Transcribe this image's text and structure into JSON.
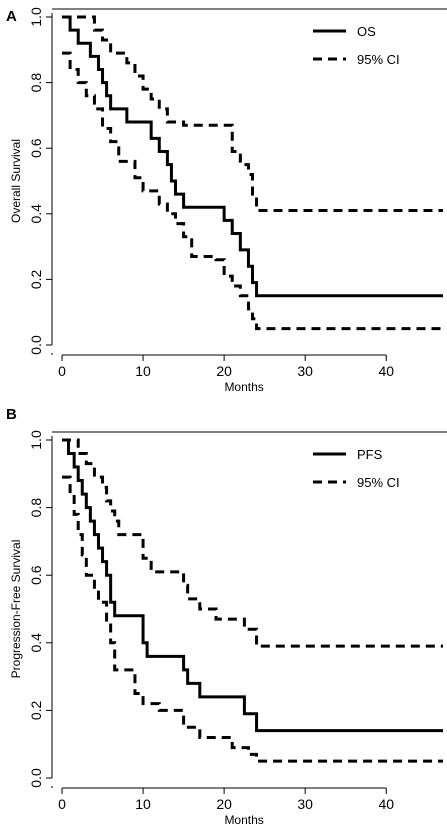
{
  "chart_data": [
    {
      "type": "line",
      "panel_label": "A",
      "xlabel": "Months",
      "ylabel": "Overall Survival",
      "xlim": [
        0,
        47
      ],
      "ylim": [
        0,
        1.0
      ],
      "xticks": [
        0,
        10,
        20,
        30,
        40
      ],
      "yticks": [
        0.0,
        0.2,
        0.4,
        0.6,
        0.8,
        1.0
      ],
      "ytick_labels": [
        "0.0",
        "0.2",
        "0.4",
        "0.6",
        "0.8",
        "1.0"
      ],
      "xtick_labels": [
        "0",
        "10",
        "20",
        "30",
        "40"
      ],
      "grid": false,
      "legend_position": "top-right",
      "series": [
        {
          "name": "OS",
          "line_style": "solid",
          "color": "#000000",
          "steps": [
            [
              0,
              1.0
            ],
            [
              1,
              0.96
            ],
            [
              2,
              0.92
            ],
            [
              3.5,
              0.88
            ],
            [
              4.5,
              0.84
            ],
            [
              5,
              0.8
            ],
            [
              5.5,
              0.76
            ],
            [
              6,
              0.72
            ],
            [
              8,
              0.68
            ],
            [
              11,
              0.63
            ],
            [
              12,
              0.59
            ],
            [
              13,
              0.55
            ],
            [
              13.5,
              0.5
            ],
            [
              14,
              0.46
            ],
            [
              15,
              0.42
            ],
            [
              20,
              0.38
            ],
            [
              21,
              0.34
            ],
            [
              22,
              0.29
            ],
            [
              23,
              0.24
            ],
            [
              23.5,
              0.19
            ],
            [
              24,
              0.15
            ],
            [
              47,
              0.15
            ]
          ]
        },
        {
          "name": "95% CI",
          "line_style": "dashed",
          "color": "#000000",
          "steps": [
            [
              0,
              1.0
            ],
            [
              4,
              0.96
            ],
            [
              5,
              0.93
            ],
            [
              6,
              0.89
            ],
            [
              8,
              0.86
            ],
            [
              9,
              0.82
            ],
            [
              10,
              0.78
            ],
            [
              11,
              0.75
            ],
            [
              12,
              0.72
            ],
            [
              13,
              0.68
            ],
            [
              15,
              0.67
            ],
            [
              20,
              0.67
            ],
            [
              21,
              0.59
            ],
            [
              22,
              0.55
            ],
            [
              23,
              0.52
            ],
            [
              23.5,
              0.46
            ],
            [
              24,
              0.41
            ],
            [
              47,
              0.41
            ]
          ]
        },
        {
          "name": "95% CI lower",
          "line_style": "dashed",
          "color": "#000000",
          "steps": [
            [
              0,
              0.89
            ],
            [
              1,
              0.84
            ],
            [
              2,
              0.8
            ],
            [
              3,
              0.76
            ],
            [
              4,
              0.72
            ],
            [
              5,
              0.66
            ],
            [
              6,
              0.62
            ],
            [
              7,
              0.56
            ],
            [
              9,
              0.51
            ],
            [
              10,
              0.47
            ],
            [
              12,
              0.43
            ],
            [
              13,
              0.4
            ],
            [
              14,
              0.37
            ],
            [
              15,
              0.33
            ],
            [
              16,
              0.27
            ],
            [
              19,
              0.26
            ],
            [
              20,
              0.21
            ],
            [
              21,
              0.18
            ],
            [
              22,
              0.15
            ],
            [
              23,
              0.11
            ],
            [
              23.5,
              0.08
            ],
            [
              24,
              0.05
            ],
            [
              47,
              0.05
            ]
          ]
        }
      ]
    },
    {
      "type": "line",
      "panel_label": "B",
      "xlabel": "Months",
      "ylabel": "Progression-Free Survival",
      "xlim": [
        0,
        47
      ],
      "ylim": [
        0,
        1.0
      ],
      "xticks": [
        0,
        10,
        20,
        30,
        40
      ],
      "yticks": [
        0.0,
        0.2,
        0.4,
        0.6,
        0.8,
        1.0
      ],
      "ytick_labels": [
        "0.0",
        "0.2",
        "0.4",
        "0.6",
        "0.8",
        "1.0"
      ],
      "xtick_labels": [
        "0",
        "10",
        "20",
        "30",
        "40"
      ],
      "grid": false,
      "legend_position": "top-right",
      "series": [
        {
          "name": "PFS",
          "line_style": "solid",
          "color": "#000000",
          "steps": [
            [
              0,
              1.0
            ],
            [
              0.8,
              0.96
            ],
            [
              1.5,
              0.92
            ],
            [
              2,
              0.88
            ],
            [
              2.5,
              0.84
            ],
            [
              3,
              0.8
            ],
            [
              3.5,
              0.76
            ],
            [
              4,
              0.72
            ],
            [
              4.5,
              0.68
            ],
            [
              5,
              0.64
            ],
            [
              5.5,
              0.6
            ],
            [
              6,
              0.52
            ],
            [
              6.5,
              0.48
            ],
            [
              10,
              0.4
            ],
            [
              10.5,
              0.36
            ],
            [
              15,
              0.32
            ],
            [
              15.5,
              0.28
            ],
            [
              17,
              0.24
            ],
            [
              22.5,
              0.19
            ],
            [
              24,
              0.14
            ],
            [
              47,
              0.14
            ]
          ]
        },
        {
          "name": "95% CI",
          "line_style": "dashed",
          "color": "#000000",
          "steps": [
            [
              0,
              1.0
            ],
            [
              2,
              0.96
            ],
            [
              3,
              0.93
            ],
            [
              4,
              0.89
            ],
            [
              5,
              0.86
            ],
            [
              5.5,
              0.82
            ],
            [
              6,
              0.79
            ],
            [
              6.5,
              0.76
            ],
            [
              7,
              0.72
            ],
            [
              10,
              0.65
            ],
            [
              11,
              0.61
            ],
            [
              15,
              0.57
            ],
            [
              15.5,
              0.53
            ],
            [
              17,
              0.5
            ],
            [
              19,
              0.47
            ],
            [
              22.5,
              0.44
            ],
            [
              24,
              0.39
            ],
            [
              47,
              0.39
            ]
          ]
        },
        {
          "name": "95% CI lower",
          "line_style": "dashed",
          "color": "#000000",
          "steps": [
            [
              0,
              0.89
            ],
            [
              1,
              0.84
            ],
            [
              1.5,
              0.78
            ],
            [
              2,
              0.72
            ],
            [
              2.5,
              0.66
            ],
            [
              3,
              0.6
            ],
            [
              4,
              0.55
            ],
            [
              4.5,
              0.52
            ],
            [
              5.5,
              0.46
            ],
            [
              6,
              0.4
            ],
            [
              6.5,
              0.32
            ],
            [
              9,
              0.25
            ],
            [
              10,
              0.22
            ],
            [
              12,
              0.2
            ],
            [
              15,
              0.15
            ],
            [
              17,
              0.12
            ],
            [
              21,
              0.09
            ],
            [
              23,
              0.07
            ],
            [
              24,
              0.05
            ],
            [
              47,
              0.05
            ]
          ]
        }
      ]
    }
  ]
}
